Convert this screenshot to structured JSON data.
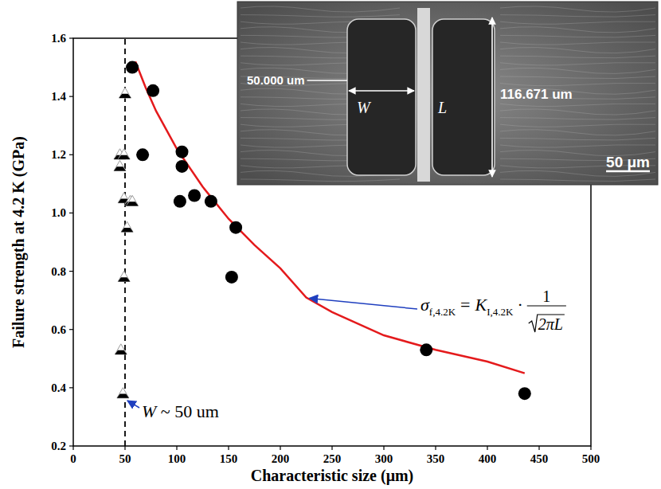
{
  "chart_data": {
    "type": "scatter",
    "x_label": "Characteristic size (μm)",
    "y_label": "Failure strength at 4.2 K (GPa)",
    "xlim": [
      0,
      500
    ],
    "xticks": [
      0,
      50,
      100,
      150,
      200,
      250,
      300,
      350,
      400,
      450,
      500
    ],
    "ylim": [
      0.2,
      1.6
    ],
    "yticks": [
      0.2,
      0.4,
      0.6,
      0.8,
      {
        "value": 1,
        "label": "1.0"
      },
      1.2,
      1.4,
      1.6
    ],
    "grid": false,
    "series": [
      {
        "type": "scatter",
        "marker": "triangle",
        "color": "#000000",
        "x": [
          45,
          49,
          45,
          50,
          49,
          55,
          57,
          52,
          49,
          46,
          48
        ],
        "values": [
          1.2,
          1.2,
          1.16,
          1.41,
          1.05,
          1.04,
          1.04,
          0.95,
          0.78,
          0.53,
          0.38
        ]
      },
      {
        "type": "line",
        "line_style": "solid",
        "color": "#e41a1c",
        "x": [
          60,
          70,
          80,
          100,
          125,
          150,
          175,
          200,
          225,
          250,
          300,
          350,
          400,
          436
        ],
        "values": [
          1.52,
          1.43,
          1.35,
          1.22,
          1.09,
          0.98,
          0.89,
          0.81,
          0.71,
          0.66,
          0.58,
          0.53,
          0.49,
          0.45
        ]
      },
      {
        "type": "scatter",
        "marker": "circle",
        "color": "#000000",
        "x": [
          57,
          67,
          77,
          103,
          105,
          105,
          117,
          133,
          153,
          157,
          341,
          436
        ],
        "values": [
          1.5,
          1.2,
          1.42,
          1.04,
          1.21,
          1.16,
          1.06,
          1.04,
          0.78,
          0.95,
          0.53,
          0.38
        ]
      }
    ],
    "annotations": {
      "vline": 50,
      "vline_symbol": "W",
      "vline_text": " ~ 50 um",
      "formula": {
        "lhs": "σ",
        "lhs_sub": "f,4.2K",
        "eq": "=",
        "rhs": "K",
        "rhs_sub": "I,4.2K",
        "dot": "·",
        "numerator": "1",
        "denominator": "2πL"
      }
    },
    "inset": {
      "width_label": "50.000 um",
      "w": "W",
      "l": "L",
      "length_label": "116.671 um",
      "scale_bar": "50 μm"
    }
  }
}
